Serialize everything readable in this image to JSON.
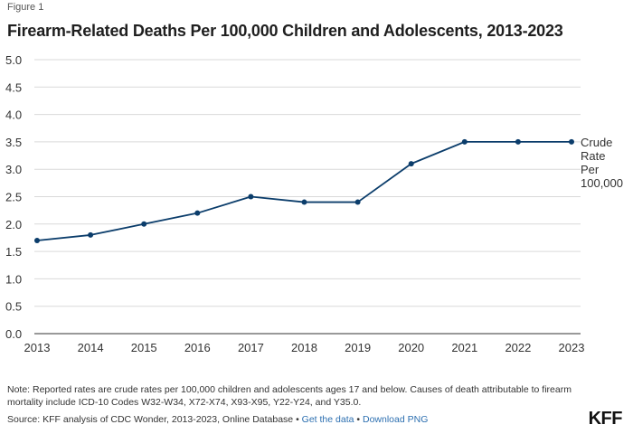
{
  "header": {
    "figure_label": "Figure 1",
    "title": "Firearm-Related Deaths Per 100,000 Children and Adolescents, 2013-2023"
  },
  "chart_data": {
    "type": "line",
    "title": "Firearm-Related Deaths Per 100,000 Children and Adolescents, 2013-2023",
    "x": [
      "2013",
      "2014",
      "2015",
      "2016",
      "2017",
      "2018",
      "2019",
      "2020",
      "2021",
      "2022",
      "2023"
    ],
    "series": [
      {
        "name": "Crude Rate Per 100,000",
        "label_lines": [
          "Crude",
          "Rate",
          "Per",
          "100,000"
        ],
        "values": [
          1.7,
          1.8,
          2.0,
          2.2,
          2.5,
          2.4,
          2.4,
          3.1,
          3.5,
          3.5,
          3.5
        ]
      }
    ],
    "ylim": [
      0,
      5
    ],
    "yticks": [
      "0.0",
      "0.5",
      "1.0",
      "1.5",
      "2.0",
      "2.5",
      "3.0",
      "3.5",
      "4.0",
      "4.5",
      "5.0"
    ],
    "xlabel": "",
    "ylabel": "",
    "grid": true,
    "line_color": "#0b3d6b"
  },
  "footer": {
    "note": "Note: Reported rates are crude rates per 100,000 children and adolescents ages 17 and below. Causes of death attributable to firearm mortality include ICD-10 Codes W32-W34, X72-X74, X93-X95, Y22-Y24, and Y35.0.",
    "source_text": "Source: KFF analysis of CDC Wonder, 2013-2023, Online Database",
    "separator": "•",
    "get_data_label": "Get the data",
    "download_label": "Download PNG",
    "logo": "KFF"
  }
}
